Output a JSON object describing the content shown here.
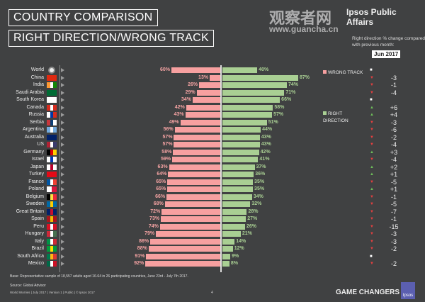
{
  "header": {
    "title1": "COUNTRY COMPARISON",
    "title2": "RIGHT DIRECTION/WRONG TRACK",
    "brand": "Ipsos Public Affairs",
    "watermark": "观察者网",
    "watermark_url": "www.guancha.cn",
    "change_note": "Right direction % change compared with previous month:",
    "month": "Jun 2017"
  },
  "footer": {
    "base": "Base: Representative sample of 18,557 adults aged 16-64 in 26 participating countries, June 23rd - July 7th 2017.",
    "source": "Source: Global Advisor",
    "meta": "World Worries | July 2017 | Version 1 | Public | © Ipsos 2017",
    "page": "4",
    "tagline": "GAME CHANGERS",
    "logo": "Ipsos"
  },
  "colors": {
    "wrong": "#f7a0a0",
    "right": "#a9cf93",
    "up": "#6fbf5a",
    "down": "#e84040",
    "background": "#404142"
  },
  "chart_data": {
    "type": "bar",
    "orientation": "horizontal-diverging",
    "unit": "%",
    "xlim": [
      0,
      100
    ],
    "categories": [
      "World",
      "China",
      "India",
      "Saudi Arabia",
      "South Korea",
      "Canada",
      "Russia",
      "Serbia",
      "Argentina",
      "Australia",
      "US",
      "Germany",
      "Israel",
      "Japan",
      "Turkey",
      "France",
      "Poland",
      "Belgium",
      "Sweden",
      "Great Britain",
      "Spain",
      "Peru",
      "Hungary",
      "Italy",
      "Brazil",
      "South Africa",
      "Mexico"
    ],
    "series": [
      {
        "name": "WRONG TRACK",
        "values": [
          60,
          13,
          26,
          29,
          34,
          42,
          43,
          49,
          56,
          57,
          57,
          58,
          59,
          63,
          64,
          65,
          65,
          66,
          68,
          72,
          73,
          74,
          79,
          86,
          88,
          91,
          92
        ]
      },
      {
        "name": "RIGHT DIRECTION",
        "values": [
          40,
          87,
          74,
          71,
          66,
          58,
          57,
          51,
          44,
          43,
          43,
          42,
          41,
          37,
          36,
          35,
          35,
          34,
          32,
          28,
          27,
          26,
          21,
          14,
          12,
          9,
          8
        ]
      }
    ],
    "change_vs_previous_month": [
      "",
      "-3",
      "-1",
      "-4",
      "",
      "+6",
      "+4",
      "-3",
      "-6",
      "-2",
      "-4",
      "+3",
      "-4",
      "+2",
      "+1",
      "-5",
      "+1",
      "-1",
      "-5",
      "-7",
      "-1",
      "-15",
      "-3",
      "-3",
      "-2",
      "",
      "-2"
    ],
    "trend": [
      "flat",
      "down",
      "down",
      "down",
      "flat",
      "up",
      "up",
      "down",
      "down",
      "down",
      "down",
      "up",
      "down",
      "up",
      "up",
      "down",
      "up",
      "down",
      "down",
      "down",
      "down",
      "down",
      "down",
      "down",
      "down",
      "flat",
      "down"
    ],
    "flags": [
      [],
      [
        "#de2910"
      ],
      [
        "#ff9933",
        "#ffffff",
        "#138808"
      ],
      [
        "#006c35"
      ],
      [
        "#ffffff"
      ],
      [
        "#d52b1e",
        "#ffffff",
        "#d52b1e"
      ],
      [
        "#ffffff",
        "#0039a6",
        "#d52b1e"
      ],
      [
        "#c6363c",
        "#0c4076",
        "#ffffff"
      ],
      [
        "#74acdf",
        "#ffffff",
        "#74acdf"
      ],
      [
        "#012169"
      ],
      [
        "#b22234",
        "#ffffff",
        "#3c3b6e"
      ],
      [
        "#000000",
        "#dd0000",
        "#ffce00"
      ],
      [
        "#ffffff",
        "#0038b8",
        "#ffffff"
      ],
      [
        "#ffffff",
        "#bc002d",
        "#ffffff"
      ],
      [
        "#e30a17"
      ],
      [
        "#0055a4",
        "#ffffff",
        "#ef4135"
      ],
      [
        "#ffffff",
        "#dc143c"
      ],
      [
        "#000000",
        "#fae042",
        "#ed2939"
      ],
      [
        "#006aa7",
        "#fecc00",
        "#006aa7"
      ],
      [
        "#012169",
        "#c8102e",
        "#012169"
      ],
      [
        "#aa151b",
        "#f1bf00",
        "#aa151b"
      ],
      [
        "#d91023",
        "#ffffff",
        "#d91023"
      ],
      [
        "#ce2939",
        "#ffffff",
        "#477050"
      ],
      [
        "#009246",
        "#ffffff",
        "#ce2b37"
      ],
      [
        "#009c3b",
        "#ffdf00",
        "#009c3b"
      ],
      [
        "#007a4d",
        "#ffb612",
        "#de3831"
      ],
      [
        "#006847",
        "#ffffff",
        "#ce1126"
      ]
    ]
  }
}
